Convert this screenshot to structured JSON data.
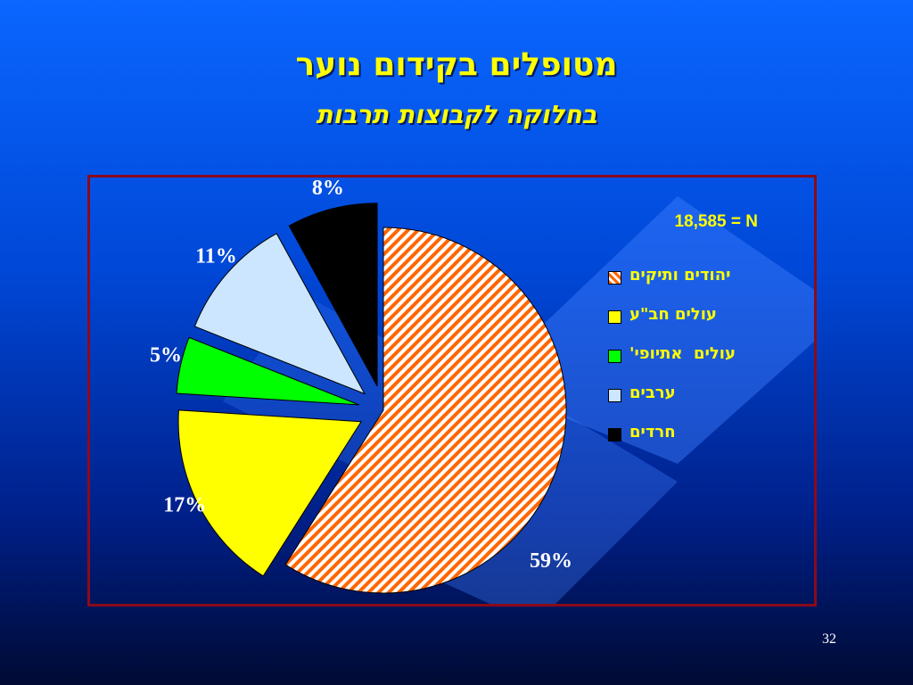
{
  "slide": {
    "title": "מטופלים בקידום נוער",
    "subtitle": "בחלוקה לקבוצות תרבות",
    "page_number": "32"
  },
  "chart_data": {
    "type": "pie",
    "title": "מטופלים בקידום נוער",
    "subtitle": "בחלוקה לקבוצות תרבות",
    "n_label": "18,585 = N",
    "slices": [
      {
        "name": "יהודים ותיקים",
        "value": 59,
        "label": "59%",
        "color": "#ff6600",
        "pattern": "diagonal-hatch"
      },
      {
        "name": "עולים חב\"ע",
        "value": 17,
        "label": "17%",
        "color": "#ffff00"
      },
      {
        "name": "עולים  אתיופי'",
        "value": 5,
        "label": "5%",
        "color": "#00ff00"
      },
      {
        "name": "ערבים",
        "value": 11,
        "label": "11%",
        "color": "#cce6ff"
      },
      {
        "name": "חרדים",
        "value": 8,
        "label": "8%",
        "color": "#000000"
      }
    ],
    "legend_position": "right"
  }
}
